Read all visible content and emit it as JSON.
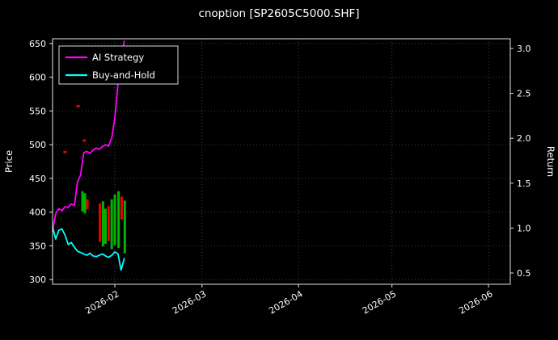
{
  "title": "cnoption [SP2605C5000.SHF]",
  "legend": {
    "items": [
      {
        "label": "AI Strategy",
        "color": "#ff00ff"
      },
      {
        "label": "Buy-and-Hold",
        "color": "#00ffff"
      }
    ]
  },
  "colors": {
    "background": "#000000",
    "spine": "#e6e6e6",
    "grid": "#555555",
    "tick_text": "#ffffff",
    "candle_up": "#00b400",
    "candle_down": "#e60000",
    "mark": "#e60000"
  },
  "chart_data": {
    "type": "line",
    "title": "cnoption [SP2605C5000.SHF]",
    "x_start_date": "2026-01-12",
    "x_domain_days": [
      0,
      147
    ],
    "x_ticks": [
      {
        "label": "2026-02",
        "day": 20
      },
      {
        "label": "2026-03",
        "day": 48
      },
      {
        "label": "2026-04",
        "day": 79
      },
      {
        "label": "2026-05",
        "day": 109
      },
      {
        "label": "2026-06",
        "day": 140
      }
    ],
    "left_axis": {
      "label": "Price",
      "range": [
        293,
        657
      ],
      "ticks": [
        300,
        350,
        400,
        450,
        500,
        550,
        600,
        650
      ]
    },
    "right_axis": {
      "label": "Return",
      "range": [
        0.374,
        3.108
      ],
      "ticks": [
        0.5,
        1.0,
        1.5,
        2.0,
        2.5,
        3.0
      ]
    },
    "grid": true,
    "legend_position": "upper-left",
    "series": [
      {
        "name": "AI Strategy",
        "color": "#ff00ff",
        "axis": "left",
        "days": [
          0,
          1,
          2,
          3,
          4,
          5,
          6,
          7,
          8,
          9,
          10,
          11,
          12,
          13,
          14,
          15,
          16,
          17,
          18,
          19,
          20,
          21,
          22,
          23
        ],
        "values": [
          372,
          398,
          405,
          402,
          408,
          407,
          412,
          410,
          445,
          455,
          488,
          490,
          487,
          492,
          495,
          493,
          497,
          500,
          498,
          510,
          540,
          590,
          630,
          653
        ]
      },
      {
        "name": "Buy-and-Hold",
        "color": "#00ffff",
        "axis": "left",
        "days": [
          0,
          1,
          2,
          3,
          4,
          5,
          6,
          7,
          8,
          9,
          10,
          11,
          12,
          13,
          14,
          15,
          16,
          17,
          18,
          19,
          20,
          21,
          22,
          23
        ],
        "values": [
          378,
          360,
          373,
          375,
          366,
          352,
          355,
          348,
          342,
          340,
          338,
          336,
          339,
          335,
          334,
          336,
          338,
          335,
          333,
          336,
          341,
          338,
          314,
          331
        ]
      }
    ],
    "candles": [
      {
        "day": 9.6,
        "low": 401,
        "high": 431,
        "dir": "up"
      },
      {
        "day": 10.4,
        "low": 398,
        "high": 428,
        "dir": "up"
      },
      {
        "day": 11.2,
        "low": 404,
        "high": 419,
        "dir": "down"
      },
      {
        "day": 15.2,
        "low": 356,
        "high": 413,
        "dir": "down"
      },
      {
        "day": 16.2,
        "low": 349,
        "high": 416,
        "dir": "up"
      },
      {
        "day": 17.0,
        "low": 353,
        "high": 405,
        "dir": "up"
      },
      {
        "day": 18.0,
        "low": 357,
        "high": 409,
        "dir": "down"
      },
      {
        "day": 19.0,
        "low": 345,
        "high": 419,
        "dir": "up"
      },
      {
        "day": 20.0,
        "low": 351,
        "high": 426,
        "dir": "up"
      },
      {
        "day": 21.2,
        "low": 347,
        "high": 431,
        "dir": "up"
      },
      {
        "day": 22.2,
        "low": 389,
        "high": 423,
        "dir": "down"
      },
      {
        "day": 23.2,
        "low": 339,
        "high": 417,
        "dir": "up"
      }
    ],
    "marks": [
      {
        "day": 4.0,
        "price": 489
      },
      {
        "day": 8.2,
        "price": 557
      },
      {
        "day": 10.2,
        "price": 506
      }
    ]
  }
}
